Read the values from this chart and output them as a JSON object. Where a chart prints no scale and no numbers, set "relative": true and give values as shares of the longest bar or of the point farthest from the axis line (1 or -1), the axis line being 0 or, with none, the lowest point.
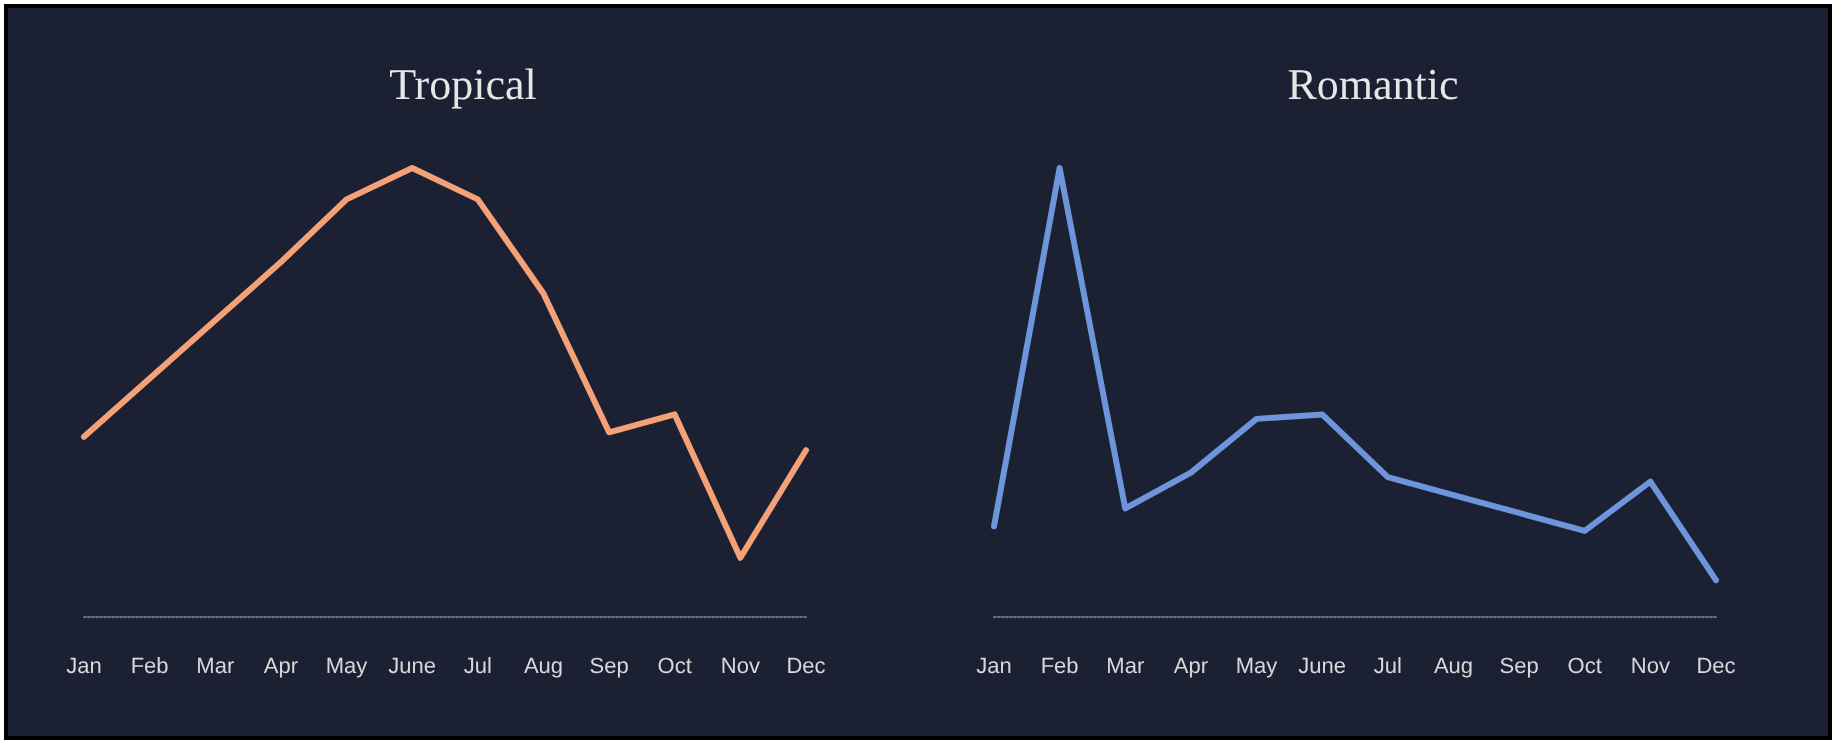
{
  "chart_data": [
    {
      "type": "line",
      "title": "Tropical",
      "relative": true,
      "categories": [
        "Jan",
        "Feb",
        "Mar",
        "Apr",
        "May",
        "June",
        "Jul",
        "Aug",
        "Sep",
        "Oct",
        "Nov",
        "Dec"
      ],
      "series": [
        {
          "color": "#f4a178",
          "values": [
            0.4,
            0.53,
            0.66,
            0.79,
            0.93,
            1.0,
            0.93,
            0.72,
            0.41,
            0.45,
            0.13,
            0.37
          ]
        }
      ],
      "grid": false,
      "marker": "none",
      "line_style": "solid"
    },
    {
      "type": "line",
      "title": "Romantic",
      "relative": true,
      "categories": [
        "Jan",
        "Feb",
        "Mar",
        "Apr",
        "May",
        "June",
        "Jul",
        "Aug",
        "Sep",
        "Oct",
        "Nov",
        "Dec"
      ],
      "series": [
        {
          "color": "#6e95dc",
          "values": [
            0.2,
            1.0,
            0.24,
            0.32,
            0.44,
            0.45,
            0.31,
            0.27,
            0.23,
            0.19,
            0.3,
            0.08
          ]
        }
      ],
      "grid": false,
      "marker": "none",
      "line_style": "solid"
    }
  ]
}
